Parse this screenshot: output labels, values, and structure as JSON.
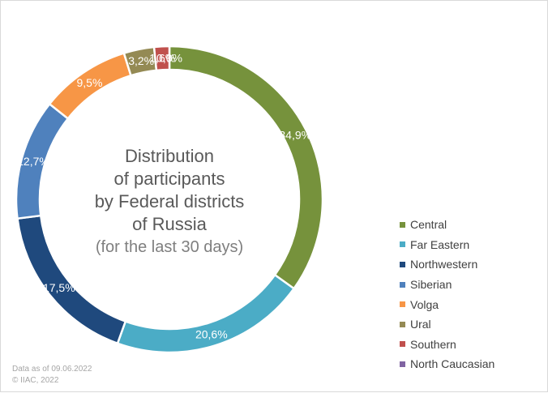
{
  "chart_data": {
    "type": "pie",
    "donut": true,
    "title_lines": [
      "Distribution",
      "of participants",
      "by Federal districts",
      "of Russia"
    ],
    "subtitle": "(for the last 30 days)",
    "legend_position": "right",
    "slices": [
      {
        "name": "Central",
        "value": 34.9,
        "label": "34,9%",
        "color": "#76923c"
      },
      {
        "name": "Far Eastern",
        "value": 20.6,
        "label": "20,6%",
        "color": "#4bacc6"
      },
      {
        "name": "Northwestern",
        "value": 17.5,
        "label": "17,5%",
        "color": "#1f497d"
      },
      {
        "name": "Siberian",
        "value": 12.7,
        "label": "12,7%",
        "color": "#4f81bd"
      },
      {
        "name": "Volga",
        "value": 9.5,
        "label": "9,5%",
        "color": "#f79646"
      },
      {
        "name": "Ural",
        "value": 3.2,
        "label": "3,2%",
        "color": "#948a54"
      },
      {
        "name": "Southern",
        "value": 1.6,
        "label": "1,6%",
        "color": "#c0504d"
      },
      {
        "name": "North Caucasian",
        "value": 0.0,
        "label": "0,0%",
        "color": "#8064a2"
      }
    ]
  },
  "footer": {
    "date_note": "Data as of 09.06.2022",
    "copyright": "© IIAC, 2022"
  }
}
